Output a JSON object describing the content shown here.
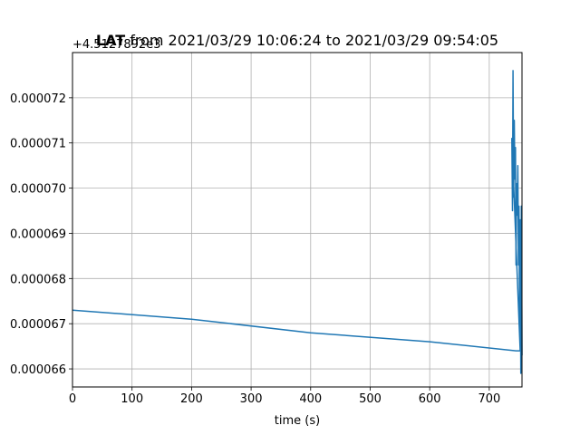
{
  "chart_data": {
    "type": "line",
    "title_bold": "LAT",
    "title_rest": " from 2021/03/29 10:06:24 to 2021/03/29 09:54:05",
    "offset_text": "+4.5127892e3",
    "xlabel": "time (s)",
    "ylabel": "",
    "xlim": [
      0,
      755
    ],
    "ylim": [
      6.56e-05,
      7.3e-05
    ],
    "grid": true,
    "x_ticks": [
      0,
      100,
      200,
      300,
      400,
      500,
      600,
      700
    ],
    "x_tick_labels": [
      "0",
      "100",
      "200",
      "300",
      "400",
      "500",
      "600",
      "700"
    ],
    "y_ticks": [
      6.6e-05,
      6.7e-05,
      6.8e-05,
      6.9e-05,
      7e-05,
      7.1e-05,
      7.2e-05
    ],
    "y_tick_labels": [
      "0.000066",
      "0.000067",
      "0.000068",
      "0.000069",
      "0.000070",
      "0.000071",
      "0.000072"
    ],
    "series": [
      {
        "color": "#1f77b4",
        "x": [
          0,
          200,
          400,
          600,
          745,
          748,
          752,
          738,
          739,
          740,
          741,
          742,
          743,
          744,
          745,
          746,
          747,
          748,
          749,
          750,
          751,
          752,
          753,
          754,
          755
        ],
        "y": [
          6.73e-05,
          6.71e-05,
          6.68e-05,
          6.66e-05,
          6.64e-05,
          6.64e-05,
          6.64e-05,
          7.11e-05,
          6.95e-05,
          7.26e-05,
          6.98e-05,
          7.15e-05,
          7.02e-05,
          7.09e-05,
          6.83e-05,
          7.01e-05,
          6.94e-05,
          7.05e-05,
          6.83e-05,
          6.96e-05,
          6.68e-05,
          6.93e-05,
          6.59e-05,
          6.96e-05,
          6.63e-05
        ]
      }
    ]
  }
}
